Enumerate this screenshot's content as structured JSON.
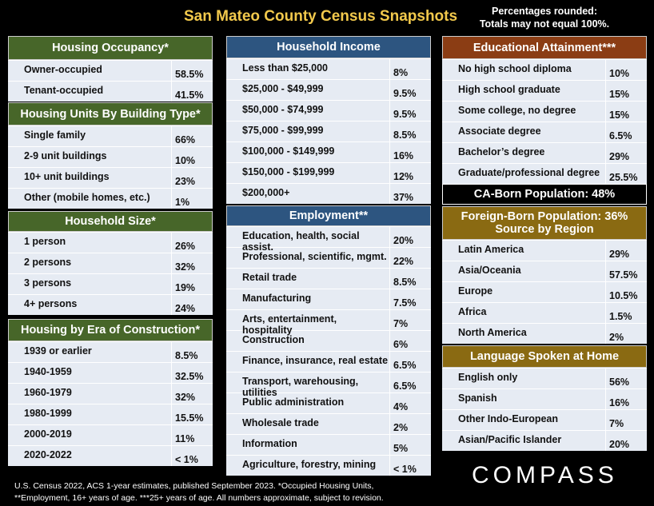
{
  "title": "San Mateo County Census Snapshots",
  "note": [
    "Percentages rounded:",
    "Totals may not equal 100%."
  ],
  "panels": {
    "occupancy": {
      "title": "Housing Occupancy*",
      "rows": [
        [
          "Owner-occupied",
          "58.5%"
        ],
        [
          "Tenant-occupied",
          "41.5%"
        ]
      ]
    },
    "units": {
      "title": "Housing Units By Building Type*",
      "rows": [
        [
          "Single family",
          "66%"
        ],
        [
          "2-9 unit buildings",
          "10%"
        ],
        [
          "10+ unit buildings",
          "23%"
        ],
        [
          "Other (mobile homes, etc.)",
          "1%"
        ]
      ]
    },
    "size": {
      "title": "Household Size*",
      "rows": [
        [
          "1 person",
          "26%"
        ],
        [
          "2 persons",
          "32%"
        ],
        [
          "3 persons",
          "19%"
        ],
        [
          "4+ persons",
          "24%"
        ]
      ]
    },
    "era": {
      "title": "Housing by Era of Construction*",
      "rows": [
        [
          "1939 or earlier",
          "8.5%"
        ],
        [
          "1940-1959",
          "32.5%"
        ],
        [
          "1960-1979",
          "32%"
        ],
        [
          "1980-1999",
          "15.5%"
        ],
        [
          "2000-2019",
          "11%"
        ],
        [
          "2020-2022",
          "< 1%"
        ]
      ]
    },
    "income": {
      "title": "Household Income",
      "rows": [
        [
          "Less than $25,000",
          "8%"
        ],
        [
          "$25,000 - $49,999",
          "9.5%"
        ],
        [
          "$50,000 - $74,999",
          "9.5%"
        ],
        [
          "$75,000 - $99,999",
          "8.5%"
        ],
        [
          "$100,000 - $149,999",
          "16%"
        ],
        [
          "$150,000 - $199,999",
          "12%"
        ],
        [
          "$200,000+",
          "37%"
        ]
      ]
    },
    "employment": {
      "title": "Employment**",
      "rows": [
        [
          "Education, health, social assist.",
          "20%"
        ],
        [
          "Professional, scientific, mgmt.",
          "22%"
        ],
        [
          "Retail trade",
          "8.5%"
        ],
        [
          "Manufacturing",
          "7.5%"
        ],
        [
          "Arts, entertainment, hospitality",
          "7%"
        ],
        [
          "Construction",
          "6%"
        ],
        [
          "Finance, insurance, real estate",
          "6.5%"
        ],
        [
          "Transport, warehousing, utilities",
          "6.5%"
        ],
        [
          "Public administration",
          "4%"
        ],
        [
          "Wholesale trade",
          "2%"
        ],
        [
          "Information",
          "5%"
        ],
        [
          "Agriculture, forestry, mining",
          "< 1%"
        ]
      ]
    },
    "education": {
      "title": "Educational Attainment***",
      "rows": [
        [
          "No high school diploma",
          "10%"
        ],
        [
          "High school graduate",
          "15%"
        ],
        [
          "Some college, no degree",
          "15%"
        ],
        [
          "Associate degree",
          "6.5%"
        ],
        [
          "Bachelor’s degree",
          "29%"
        ],
        [
          "Graduate/professional degree",
          "25.5%"
        ]
      ]
    },
    "caborn": {
      "title": "CA-Born Population:  48%"
    },
    "foreign": {
      "title": "Foreign-Born Population:   36%",
      "subtitle": "Source by Region",
      "rows": [
        [
          "Latin America",
          "29%"
        ],
        [
          "Asia/Oceania",
          "57.5%"
        ],
        [
          "Europe",
          "10.5%"
        ],
        [
          "Africa",
          "1.5%"
        ],
        [
          "North America",
          "2%"
        ]
      ]
    },
    "language": {
      "title": "Language Spoken at Home",
      "rows": [
        [
          "English only",
          "56%"
        ],
        [
          "Spanish",
          "16%"
        ],
        [
          "Other Indo-European",
          "7%"
        ],
        [
          "Asian/Pacific Islander",
          "20%"
        ]
      ]
    }
  },
  "footer": [
    "U.S. Census 2022, ACS 1-year estimates, published September 2023. *Occupied Housing Units,",
    "**Employment, 16+ years of age. ***25+ years of age. All numbers approximate, subject to revision."
  ],
  "logo": "COMPASS"
}
